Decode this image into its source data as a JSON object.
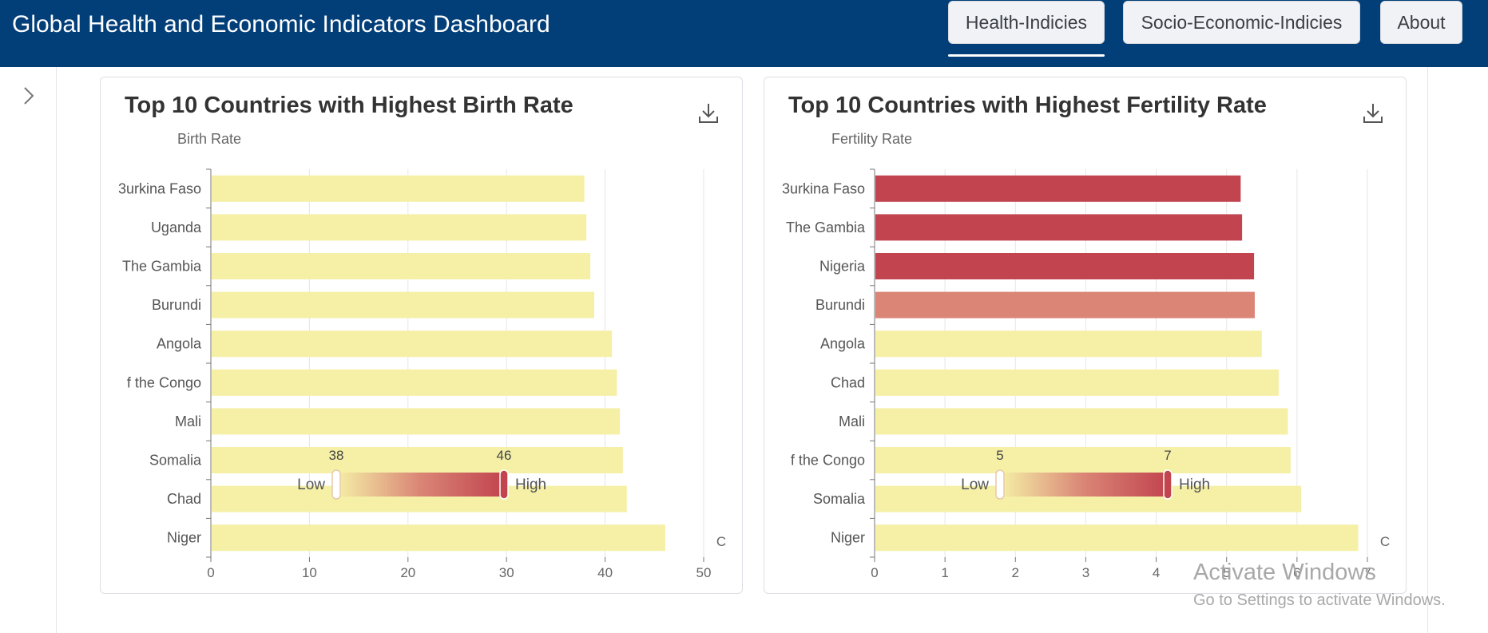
{
  "header": {
    "title": "Global Health and Economic Indicators Dashboard",
    "nav": [
      {
        "label": "Health-Indicies",
        "active": true
      },
      {
        "label": "Socio-Economic-Indicies",
        "active": false
      },
      {
        "label": "About",
        "active": false
      }
    ]
  },
  "sidebar": {
    "toggle_icon": "chevron-right-icon"
  },
  "colors": {
    "header_bg": "#023e78",
    "bar_low": "#f5f0a6",
    "bar_mid": "#da8576",
    "bar_high": "#c1444f"
  },
  "chart_data": [
    {
      "type": "bar",
      "orientation": "horizontal",
      "title": "Top 10 Countries with Highest Birth Rate",
      "subtitle": "Birth Rate",
      "categories": [
        "Burkina Faso",
        "Uganda",
        "The Gambia",
        "Burundi",
        "Angola",
        "Democratic Republic of the Congo",
        "Mali",
        "Somalia",
        "Chad",
        "Niger"
      ],
      "tick_labels_shown": [
        "3urkina Faso",
        "Uganda",
        "The Gambia",
        "Burundi",
        "Angola",
        "f the Congo",
        "Mali",
        "Somalia",
        "Chad",
        "Niger"
      ],
      "values": [
        37.9,
        38.1,
        38.5,
        38.9,
        40.7,
        41.2,
        41.5,
        41.8,
        42.2,
        46.1
      ],
      "xlim": [
        0,
        50
      ],
      "xticks": [
        0,
        10,
        20,
        30,
        40,
        50
      ],
      "xtick_labels": [
        "0",
        "10",
        "20",
        "30",
        "40",
        "50"
      ],
      "x_overflow_label": "C",
      "grid": true,
      "color_scale": {
        "min": 38,
        "max": 46,
        "min_label": "38",
        "max_label": "46",
        "low_text": "Low",
        "high_text": "High",
        "handle_low": 38,
        "handle_high": 46
      }
    },
    {
      "type": "bar",
      "orientation": "horizontal",
      "title": "Top 10 Countries with Highest Fertility Rate",
      "subtitle": "Fertility Rate",
      "categories": [
        "Burkina Faso",
        "The Gambia",
        "Nigeria",
        "Burundi",
        "Angola",
        "Chad",
        "Mali",
        "Democratic Republic of the Congo",
        "Somalia",
        "Niger"
      ],
      "tick_labels_shown": [
        "3urkina Faso",
        "The Gambia",
        "Nigeria",
        "Burundi",
        "Angola",
        "Chad",
        "Mali",
        "f the Congo",
        "Somalia",
        "Niger"
      ],
      "values": [
        5.2,
        5.22,
        5.39,
        5.4,
        5.5,
        5.74,
        5.87,
        5.91,
        6.06,
        6.87
      ],
      "bar_colors": [
        "#c1444f",
        "#c1444f",
        "#c1444f",
        "#da8576",
        "#f5f0a6",
        "#f5f0a6",
        "#f5f0a6",
        "#f5f0a6",
        "#f5f0a6",
        "#f5f0a6"
      ],
      "xlim": [
        0,
        7
      ],
      "xticks": [
        0,
        1,
        2,
        3,
        4,
        5,
        6,
        7
      ],
      "xtick_labels": [
        "0",
        "1",
        "2",
        "3",
        "4",
        "5",
        "6",
        "7"
      ],
      "x_overflow_label": "C",
      "grid": true,
      "color_scale": {
        "min": 5,
        "max": 7,
        "min_label": "5",
        "max_label": "7",
        "low_text": "Low",
        "high_text": "High",
        "handle_low": 5,
        "handle_high": 7
      }
    }
  ],
  "watermark": {
    "line1": "Activate Windows",
    "line2": "Go to Settings to activate Windows."
  }
}
